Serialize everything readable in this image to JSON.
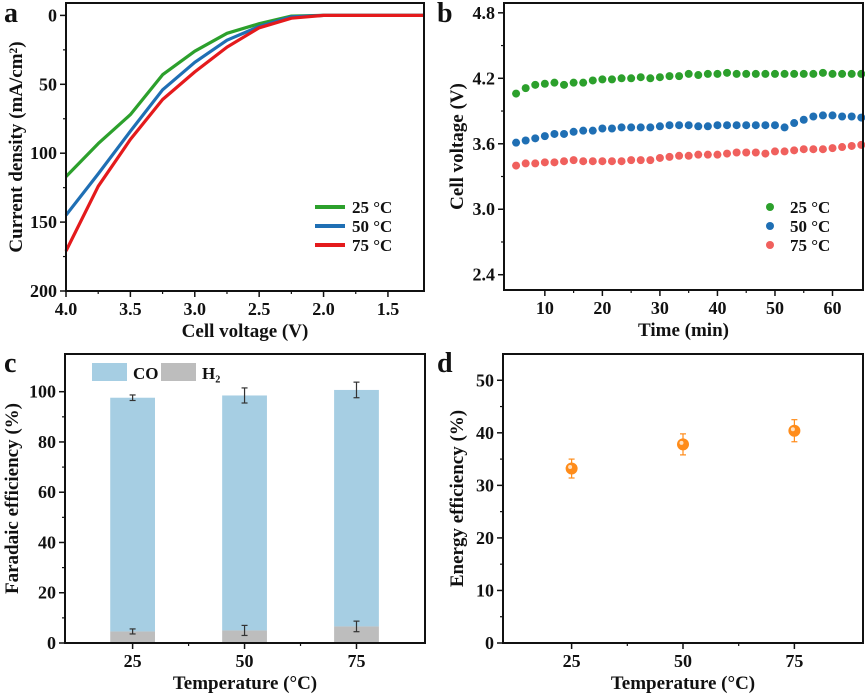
{
  "chart_data": [
    {
      "panel": "a",
      "type": "line",
      "xlabel": "Cell voltage (V)",
      "ylabel": "Current density (mA/cm²)",
      "xlim": [
        4.0,
        1.22
      ],
      "ylim": [
        200,
        -9
      ],
      "xticks": [
        4.0,
        3.5,
        3.0,
        2.5,
        2.0,
        1.5
      ],
      "xtick_labels": [
        "4.0",
        "3.5",
        "3.0",
        "2.5",
        "2.0",
        "1.5"
      ],
      "yticks": [
        0,
        50,
        100,
        150,
        200
      ],
      "ytick_labels": [
        "0",
        "50",
        "100",
        "150",
        "200"
      ],
      "legend_position": "bottom-right",
      "series": [
        {
          "name": "25 °C",
          "color": "#2ca02c",
          "x": [
            4.0,
            3.75,
            3.5,
            3.25,
            3.0,
            2.75,
            2.5,
            2.25,
            2.0,
            1.5,
            1.22
          ],
          "y": [
            117,
            93,
            72,
            43,
            26,
            13,
            6,
            0.5,
            0,
            0,
            0
          ]
        },
        {
          "name": "50 °C",
          "color": "#1f6fb4",
          "x": [
            4.0,
            3.75,
            3.5,
            3.25,
            3.0,
            2.75,
            2.5,
            2.25,
            2.0,
            1.5,
            1.22
          ],
          "y": [
            145,
            115,
            84,
            54,
            34,
            18,
            8,
            1,
            0,
            0,
            0
          ]
        },
        {
          "name": "75 °C",
          "color": "#e41a1c",
          "x": [
            4.0,
            3.75,
            3.5,
            3.25,
            3.0,
            2.75,
            2.5,
            2.25,
            2.0,
            1.5,
            1.22
          ],
          "y": [
            171,
            124,
            90,
            61,
            41,
            23,
            9,
            2,
            0,
            0,
            0
          ]
        }
      ]
    },
    {
      "panel": "b",
      "type": "scatter",
      "xlabel": "Time (min)",
      "ylabel": "Cell voltage (V)",
      "xlim": [
        2.9,
        65.3
      ],
      "ylim": [
        2.26,
        4.89
      ],
      "xticks": [
        10,
        20,
        30,
        40,
        50,
        60
      ],
      "xtick_labels": [
        "10",
        "20",
        "30",
        "40",
        "50",
        "60"
      ],
      "yticks": [
        2.4,
        3.0,
        3.6,
        4.2,
        4.8
      ],
      "ytick_labels": [
        "2.4",
        "3.0",
        "3.6",
        "4.2",
        "4.8"
      ],
      "legend_position": "bottom-right",
      "x_start": 5,
      "x_step": 1.6667,
      "series": [
        {
          "name": "25 °C",
          "color": "#2ca02c",
          "y": [
            4.06,
            4.11,
            4.14,
            4.15,
            4.16,
            4.14,
            4.16,
            4.16,
            4.18,
            4.19,
            4.19,
            4.2,
            4.2,
            4.21,
            4.2,
            4.21,
            4.22,
            4.22,
            4.24,
            4.23,
            4.24,
            4.24,
            4.25,
            4.24,
            4.24,
            4.24,
            4.24,
            4.24,
            4.24,
            4.24,
            4.24,
            4.24,
            4.25,
            4.24,
            4.24,
            4.24,
            4.24
          ]
        },
        {
          "name": "50 °C",
          "color": "#1f6fb4",
          "y": [
            3.61,
            3.63,
            3.65,
            3.67,
            3.69,
            3.69,
            3.71,
            3.72,
            3.72,
            3.74,
            3.74,
            3.75,
            3.75,
            3.75,
            3.75,
            3.76,
            3.77,
            3.77,
            3.77,
            3.76,
            3.76,
            3.77,
            3.77,
            3.77,
            3.77,
            3.77,
            3.77,
            3.77,
            3.75,
            3.79,
            3.82,
            3.85,
            3.86,
            3.86,
            3.85,
            3.85,
            3.84
          ]
        },
        {
          "name": "75 °C",
          "color": "#f0605d",
          "y": [
            3.4,
            3.42,
            3.42,
            3.43,
            3.43,
            3.44,
            3.45,
            3.44,
            3.44,
            3.44,
            3.44,
            3.44,
            3.45,
            3.45,
            3.45,
            3.47,
            3.48,
            3.49,
            3.49,
            3.5,
            3.5,
            3.5,
            3.51,
            3.52,
            3.52,
            3.52,
            3.51,
            3.53,
            3.53,
            3.54,
            3.55,
            3.55,
            3.55,
            3.56,
            3.57,
            3.58,
            3.59
          ]
        }
      ]
    },
    {
      "panel": "c",
      "type": "bar",
      "stacked": true,
      "xlabel": "Temperature (°C)",
      "ylabel": "Faradaic efficiency (%)",
      "xlim": [
        9.9,
        90.3
      ],
      "ylim": [
        0,
        115
      ],
      "categories": [
        25,
        50,
        75
      ],
      "xtick_labels": [
        "25",
        "50",
        "75"
      ],
      "yticks": [
        0,
        20,
        40,
        60,
        80,
        100
      ],
      "ytick_labels": [
        "0",
        "20",
        "40",
        "60",
        "80",
        "100"
      ],
      "legend_position": "top-left",
      "bar_width": 10,
      "series": [
        {
          "name": "H₂",
          "color": "#bdbdbd",
          "values": [
            4.6,
            5.0,
            6.6
          ],
          "errors": [
            1.0,
            2.0,
            2.1
          ]
        },
        {
          "name": "CO",
          "color": "#a6cee3",
          "values": [
            93.0,
            93.5,
            94.1
          ],
          "errors": [
            1.1,
            3.0,
            3.1
          ]
        }
      ]
    },
    {
      "panel": "d",
      "type": "scatter",
      "xlabel": "Temperature (°C)",
      "ylabel": "Energy efficiency (%)",
      "xlim": [
        9.6,
        90.4
      ],
      "ylim": [
        0,
        55
      ],
      "xticks": [
        25,
        50,
        75
      ],
      "xtick_labels": [
        "25",
        "50",
        "75"
      ],
      "yticks": [
        0,
        10,
        20,
        30,
        40,
        50
      ],
      "ytick_labels": [
        "0",
        "10",
        "20",
        "30",
        "40",
        "50"
      ],
      "series": [
        {
          "name": "Energy efficiency",
          "color": "#ff8c1a",
          "x": [
            25,
            50,
            75
          ],
          "y": [
            33.2,
            37.8,
            40.4
          ],
          "errors": [
            1.8,
            2.0,
            2.1
          ]
        }
      ]
    }
  ]
}
